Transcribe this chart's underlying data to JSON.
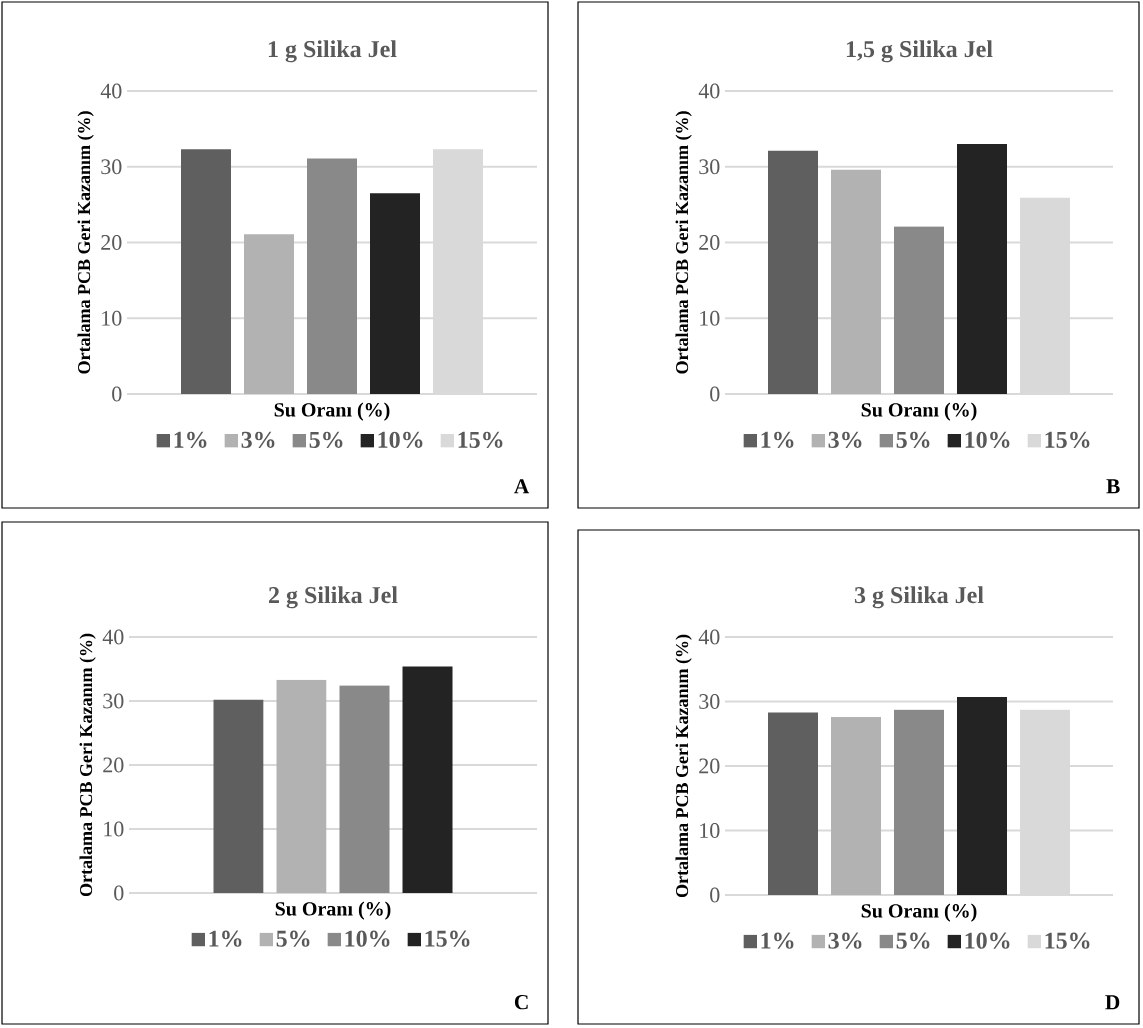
{
  "chart_data": [
    {
      "type": "bar",
      "title": "1 g Silika Jel",
      "xlabel": "Su Oranı (%)",
      "ylabel": "Ortalama PCB Geri Kazanım (%)",
      "categories": [
        null
      ],
      "ylim": [
        0,
        40
      ],
      "yticks": [
        0,
        10,
        20,
        30,
        40
      ],
      "grid": "y",
      "legend": "bottom",
      "annotations": [
        "A"
      ],
      "series": [
        {
          "name": "1%",
          "color": "#5f5f5f",
          "values": [
            32.3
          ]
        },
        {
          "name": "3%",
          "color": "#b2b2b2",
          "values": [
            21.1
          ]
        },
        {
          "name": "5%",
          "color": "#898989",
          "values": [
            31.1
          ]
        },
        {
          "name": "10%",
          "color": "#232323",
          "values": [
            26.5
          ]
        },
        {
          "name": "15%",
          "color": "#d9d9d9",
          "values": [
            32.3
          ]
        }
      ]
    },
    {
      "type": "bar",
      "title": "1,5 g Silika Jel",
      "xlabel": "Su Oranı (%)",
      "ylabel": "Ortalama PCB Geri Kazanım (%)",
      "categories": [
        null
      ],
      "ylim": [
        0,
        40
      ],
      "yticks": [
        0,
        10,
        20,
        30,
        40
      ],
      "grid": "y",
      "legend": "bottom",
      "annotations": [
        "B"
      ],
      "series": [
        {
          "name": "1%",
          "color": "#5f5f5f",
          "values": [
            32.1
          ]
        },
        {
          "name": "3%",
          "color": "#b2b2b2",
          "values": [
            29.6
          ]
        },
        {
          "name": "5%",
          "color": "#898989",
          "values": [
            22.1
          ]
        },
        {
          "name": "10%",
          "color": "#232323",
          "values": [
            33.0
          ]
        },
        {
          "name": "15%",
          "color": "#d9d9d9",
          "values": [
            25.9
          ]
        }
      ]
    },
    {
      "type": "bar",
      "title": "2 g Silika Jel",
      "xlabel": "Su Oranı (%)",
      "ylabel": "Ortalama PCB Geri Kazanım (%)",
      "categories": [
        null
      ],
      "ylim": [
        0,
        40
      ],
      "yticks": [
        0,
        10,
        20,
        30,
        40
      ],
      "grid": "y",
      "legend": "bottom",
      "annotations": [
        "C"
      ],
      "series": [
        {
          "name": "1%",
          "color": "#5f5f5f",
          "values": [
            30.2
          ]
        },
        {
          "name": "5%",
          "color": "#b2b2b2",
          "values": [
            33.3
          ]
        },
        {
          "name": "10%",
          "color": "#898989",
          "values": [
            32.4
          ]
        },
        {
          "name": "15%",
          "color": "#232323",
          "values": [
            35.4
          ]
        }
      ]
    },
    {
      "type": "bar",
      "title": "3 g Silika Jel",
      "xlabel": "Su Oranı (%)",
      "ylabel": "Ortalama PCB Geri Kazanım (%)",
      "categories": [
        null
      ],
      "ylim": [
        0,
        40
      ],
      "yticks": [
        0,
        10,
        20,
        30,
        40
      ],
      "grid": "y",
      "legend": "bottom",
      "annotations": [
        "D"
      ],
      "series": [
        {
          "name": "1%",
          "color": "#5f5f5f",
          "values": [
            28.3
          ]
        },
        {
          "name": "3%",
          "color": "#b2b2b2",
          "values": [
            27.6
          ]
        },
        {
          "name": "5%",
          "color": "#898989",
          "values": [
            28.7
          ]
        },
        {
          "name": "10%",
          "color": "#232323",
          "values": [
            30.7
          ]
        },
        {
          "name": "15%",
          "color": "#d9d9d9",
          "values": [
            28.7
          ]
        }
      ]
    }
  ]
}
